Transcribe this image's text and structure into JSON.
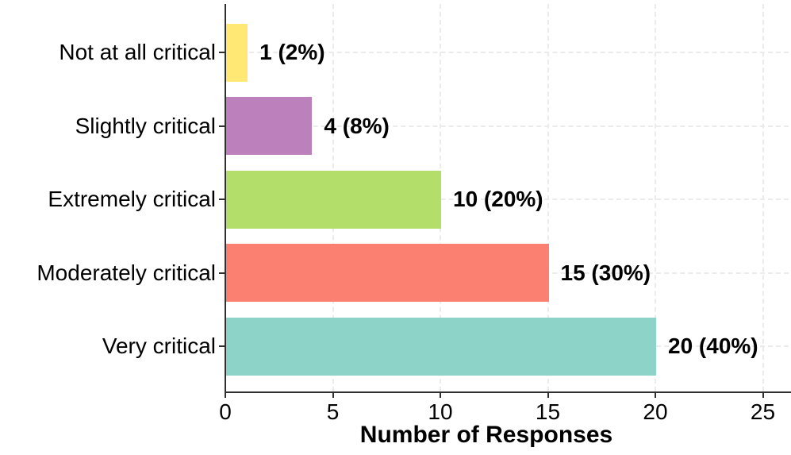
{
  "chart_data": {
    "type": "bar",
    "orientation": "horizontal",
    "title": "",
    "xlabel": "Number of Responses",
    "ylabel": "",
    "categories": [
      "Not at all critical",
      "Slightly critical",
      "Extremely critical",
      "Moderately critical",
      "Very critical"
    ],
    "values": [
      1,
      4,
      10,
      15,
      20
    ],
    "percents": [
      2,
      8,
      20,
      30,
      40
    ],
    "bar_labels": [
      "1 (2%)",
      "4 (8%)",
      "10 (20%)",
      "15 (30%)",
      "20 (40%)"
    ],
    "bar_colors": [
      "#FFE873",
      "#BC80BD",
      "#B3DE69",
      "#FB8072",
      "#8DD3C7"
    ],
    "x_ticks": [
      "0",
      "5",
      "10",
      "15",
      "20",
      "25"
    ],
    "x_tick_values": [
      0,
      5,
      10,
      15,
      20,
      25
    ],
    "xlim": [
      0,
      26
    ],
    "grid": "dashed-light-gray",
    "grid_color": "#ebebeb",
    "axis_color": "#2f2f2f",
    "legend": "none",
    "background": "#ffffff"
  }
}
